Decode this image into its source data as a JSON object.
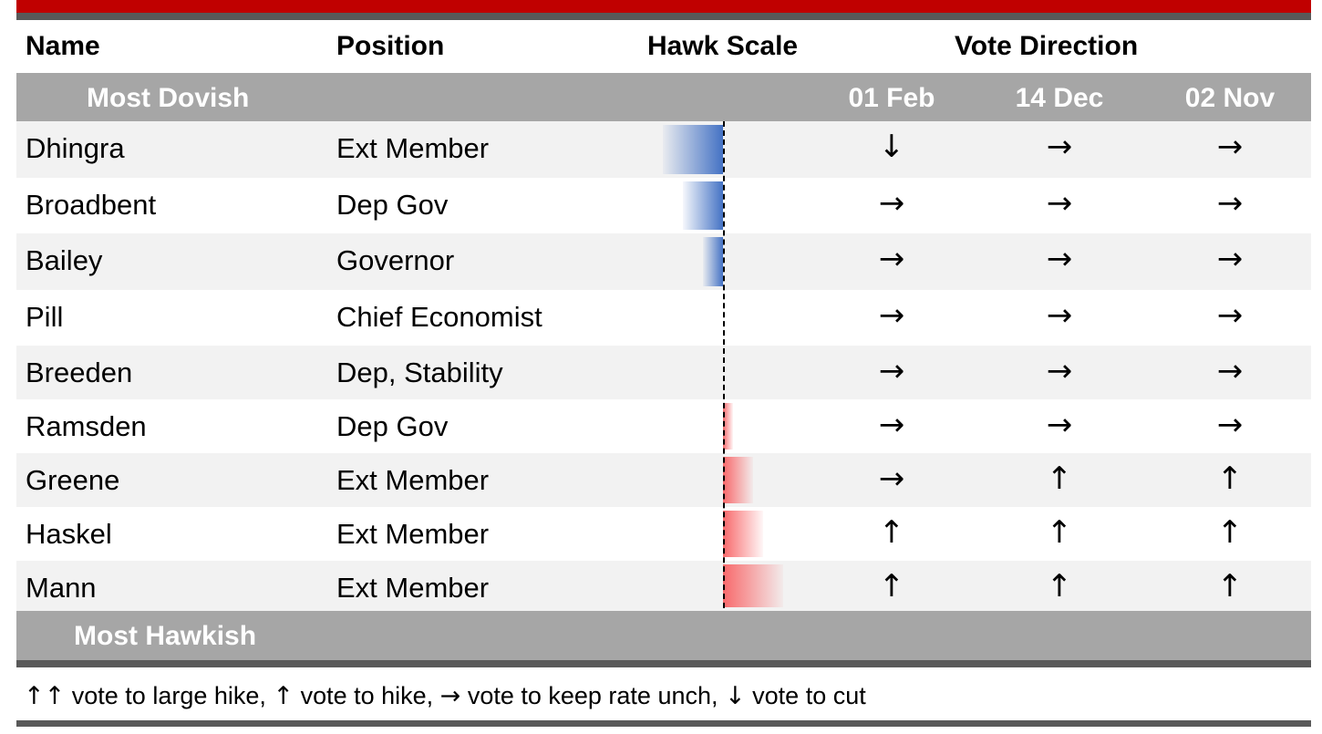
{
  "columns": {
    "name": "Name",
    "position": "Position",
    "hawk_scale": "Hawk Scale",
    "vote_direction": "Vote Direction"
  },
  "bands": {
    "top": "Most Dovish",
    "bottom": "Most Hawkish"
  },
  "vote_dates": [
    "01 Feb",
    "14 Dec",
    "02 Nov"
  ],
  "members": [
    {
      "name": "Dhingra",
      "position": "Ext Member",
      "hawk": -3,
      "votes": [
        "↓",
        "→",
        "→"
      ]
    },
    {
      "name": "Broadbent",
      "position": "Dep Gov",
      "hawk": -2,
      "votes": [
        "→",
        "→",
        "→"
      ]
    },
    {
      "name": "Bailey",
      "position": "Governor",
      "hawk": -1,
      "votes": [
        "→",
        "→",
        "→"
      ]
    },
    {
      "name": "Pill",
      "position": "Chief Economist",
      "hawk": 0,
      "votes": [
        "→",
        "→",
        "→"
      ]
    },
    {
      "name": "Breeden",
      "position": "Dep, Stability",
      "hawk": 0,
      "votes": [
        "→",
        "→",
        "→"
      ]
    },
    {
      "name": "Ramsden",
      "position": "Dep Gov",
      "hawk": 0.5,
      "votes": [
        "→",
        "→",
        "→"
      ]
    },
    {
      "name": "Greene",
      "position": "Ext Member",
      "hawk": 1.5,
      "votes": [
        "→",
        "↑",
        "↑"
      ]
    },
    {
      "name": "Haskel",
      "position": "Ext Member",
      "hawk": 2,
      "votes": [
        "↑",
        "↑",
        "↑"
      ]
    },
    {
      "name": "Mann",
      "position": "Ext Member",
      "hawk": 3,
      "votes": [
        "↑",
        "↑",
        "↑"
      ]
    }
  ],
  "legend": {
    "large_hike_symbol": "↑↑",
    "large_hike_text": "vote to large hike,",
    "hike_symbol": "↑",
    "hike_text": "vote to hike,",
    "hold_symbol": "→",
    "hold_text": "vote to keep rate unch,",
    "cut_symbol": "↓",
    "cut_text": "vote to cut"
  },
  "colors": {
    "accent_red": "#c00000",
    "band_gray": "#a6a6a6",
    "dove_blue": "#4472c4",
    "hawk_red": "#f8696b"
  }
}
